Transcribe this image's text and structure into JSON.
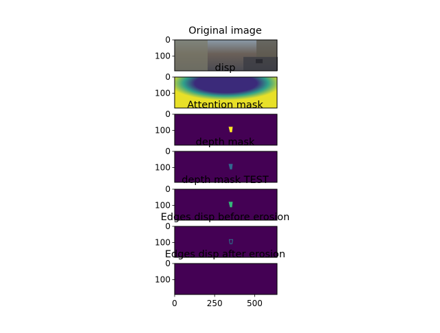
{
  "figure": {
    "background": "#ffffff",
    "colormap_low": "#440154",
    "colormap_high": "#fde725"
  },
  "chart_data": [
    {
      "type": "heatmap",
      "title": "Original image",
      "content": "photo-street-scene",
      "xlim": [
        0,
        640
      ],
      "ylim": [
        192,
        0
      ],
      "yticks": [
        0,
        100
      ],
      "xticks": [],
      "colors": {
        "sky": "#8a9aa8",
        "road": "#4a4a52",
        "buildings": "#6a6058"
      }
    },
    {
      "type": "heatmap",
      "title": "disp",
      "content": "disparity-map",
      "xlim": [
        0,
        640
      ],
      "ylim": [
        192,
        0
      ],
      "yticks": [
        0,
        100
      ],
      "xticks": [],
      "colors": {
        "low": "#3b2a7a",
        "mid": "#2fa08a",
        "high": "#e8e028"
      }
    },
    {
      "type": "heatmap",
      "title": "Attention mask",
      "content": "binary-mask",
      "xlim": [
        0,
        640
      ],
      "ylim": [
        192,
        0
      ],
      "yticks": [
        0,
        100
      ],
      "xticks": [],
      "mask_region": {
        "x": 350,
        "y": 95
      },
      "mask_color": "#fde725"
    },
    {
      "type": "heatmap",
      "title": "depth mask",
      "content": "binary-mask",
      "xlim": [
        0,
        640
      ],
      "ylim": [
        192,
        0
      ],
      "yticks": [
        0,
        100
      ],
      "xticks": [],
      "mask_region": {
        "x": 350,
        "y": 95
      },
      "mask_color": "#31688e"
    },
    {
      "type": "heatmap",
      "title": "depth mask TEST",
      "content": "binary-mask",
      "xlim": [
        0,
        640
      ],
      "ylim": [
        192,
        0
      ],
      "yticks": [
        0,
        100
      ],
      "xticks": [],
      "mask_region": {
        "x": 350,
        "y": 95
      },
      "mask_color": "#35b779"
    },
    {
      "type": "heatmap",
      "title": "Edges disp before erosion",
      "content": "edge-outline",
      "xlim": [
        0,
        640
      ],
      "ylim": [
        192,
        0
      ],
      "yticks": [
        0,
        100
      ],
      "xticks": [],
      "mask_region": {
        "x": 350,
        "y": 95
      },
      "mask_color": "#2a788e"
    },
    {
      "type": "heatmap",
      "title": "Edges disp after erosion",
      "content": "empty",
      "xlim": [
        0,
        640
      ],
      "ylim": [
        192,
        0
      ],
      "yticks": [
        0,
        100
      ],
      "xticks": [
        0,
        250,
        500
      ]
    }
  ]
}
